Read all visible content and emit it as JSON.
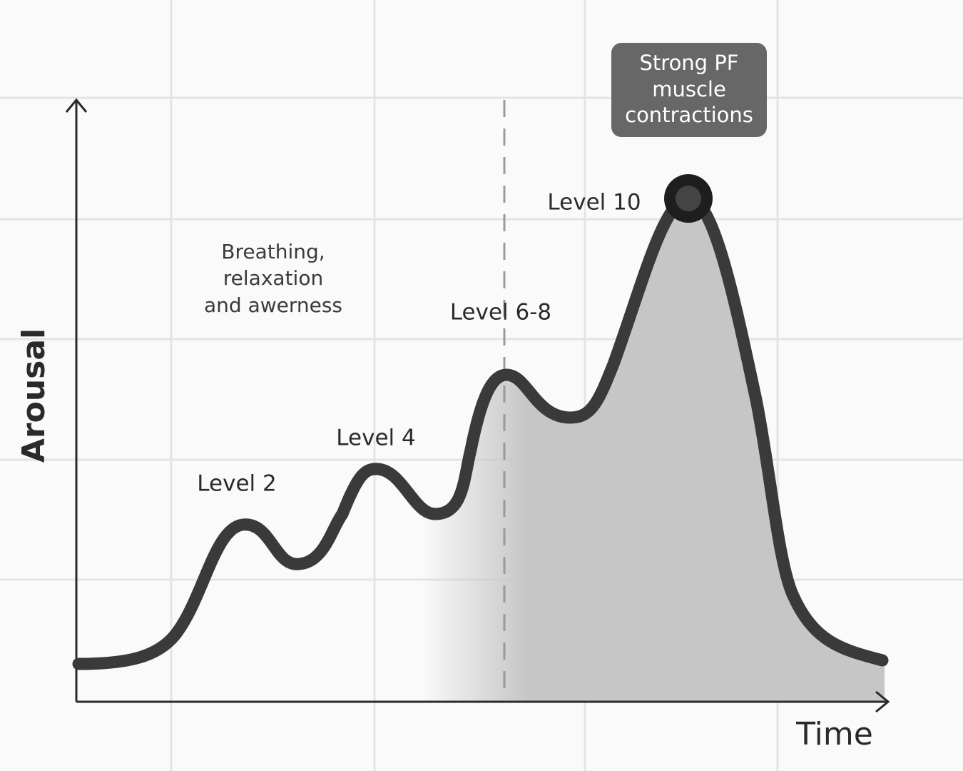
{
  "axes": {
    "y_label": "Arousal",
    "x_label": "Time"
  },
  "annotations": {
    "breathing": [
      "Breathing,",
      "relaxation",
      "and awerness"
    ],
    "level_2": "Level 2",
    "level_4": "Level 4",
    "level_6_8": "Level 6-8",
    "level_10": "Level 10",
    "peak_box": [
      "Strong PF",
      "muscle",
      "contractions"
    ]
  }
}
